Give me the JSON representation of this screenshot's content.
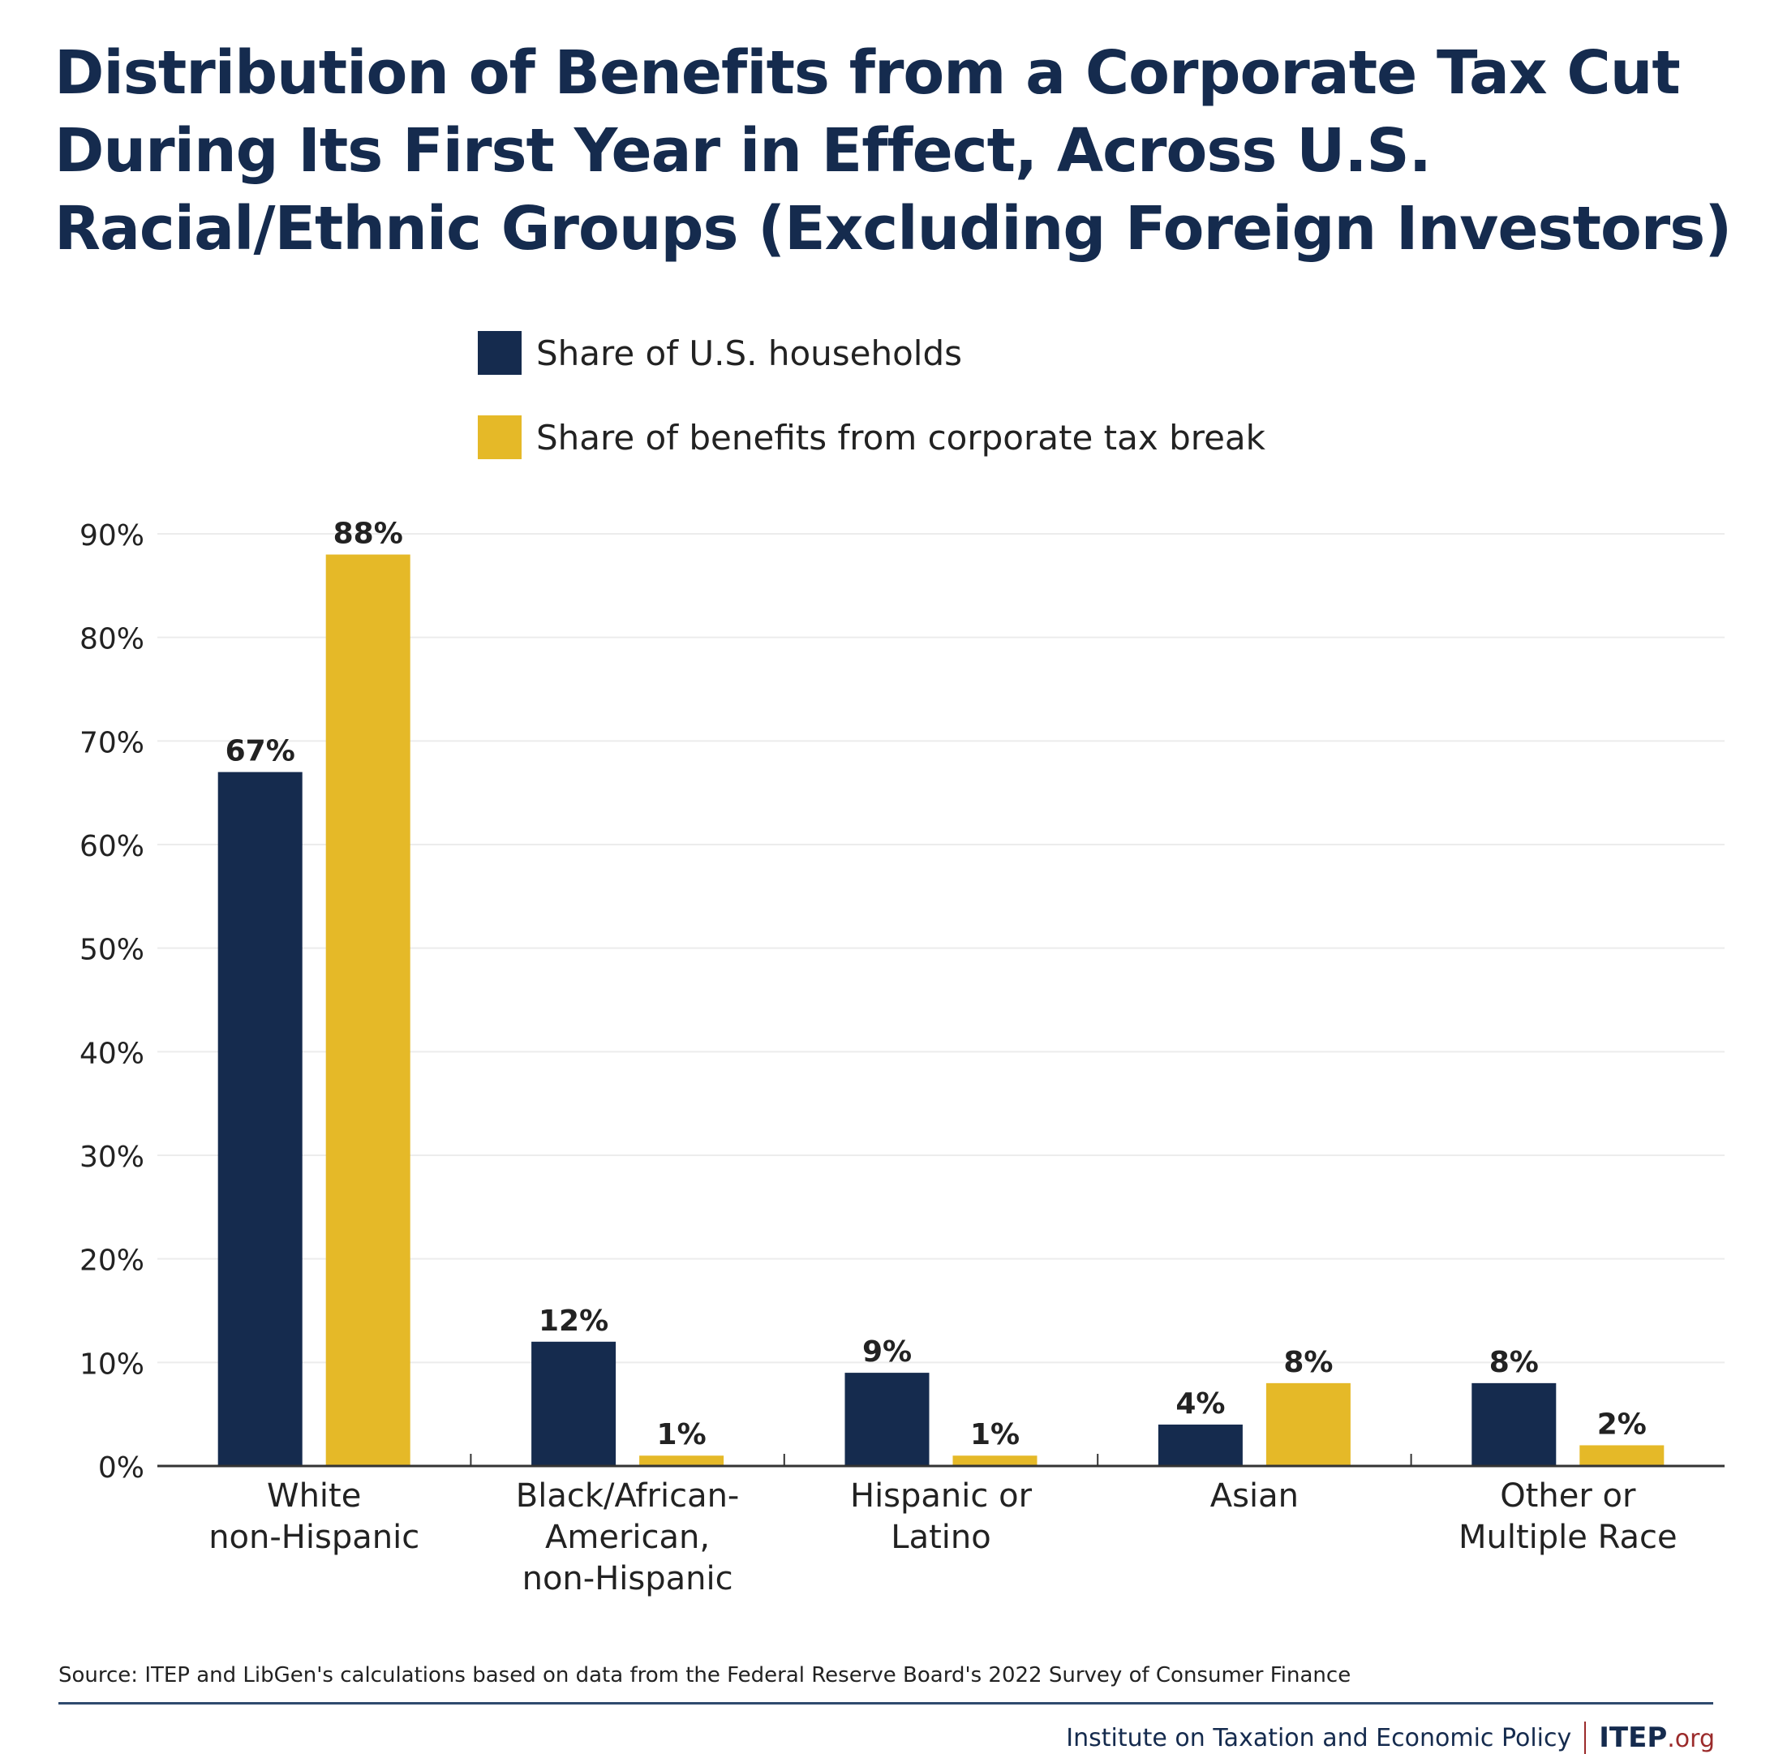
{
  "title_lines": [
    "Distribution of Benefits from a Corporate Tax Cut",
    "During Its First Year in Effect, Across U.S.",
    "Racial/Ethnic Groups (Excluding Foreign Investors)"
  ],
  "legend": [
    {
      "label": "Share of U.S. households",
      "color": "#152b4e"
    },
    {
      "label": "Share of benefits from corporate tax break",
      "color": "#e5b928"
    }
  ],
  "source": "Source: ITEP and LibGen's calculations based on data from the Federal Reserve Board's 2022 Survey of Consumer Finance",
  "footer": {
    "org": "Institute on Taxation and Economic Policy",
    "logo_main": "ITEP",
    "logo_suffix": ".org"
  },
  "colors": {
    "navy": "#152b4e",
    "gold": "#e5b928",
    "grid": "#ececec",
    "axis": "#333333",
    "text": "#222222",
    "accent_red": "#9b2b2b"
  },
  "chart_data": {
    "type": "bar",
    "title": "Distribution of Benefits from a Corporate Tax Cut During Its First Year in Effect, Across U.S. Racial/Ethnic Groups (Excluding Foreign Investors)",
    "xlabel": "",
    "ylabel": "",
    "ylim": [
      0,
      90
    ],
    "yticks": [
      0,
      10,
      20,
      30,
      40,
      50,
      60,
      70,
      80,
      90
    ],
    "ytick_labels": [
      "0%",
      "10%",
      "20%",
      "30%",
      "40%",
      "50%",
      "60%",
      "70%",
      "80%",
      "90%"
    ],
    "grid": true,
    "legend_position": "top-center",
    "categories": [
      [
        "White",
        "non-Hispanic"
      ],
      [
        "Black/African-",
        "American,",
        "non-Hispanic"
      ],
      [
        "Hispanic or",
        "Latino"
      ],
      [
        "Asian"
      ],
      [
        "Other or",
        "Multiple Race"
      ]
    ],
    "series": [
      {
        "name": "Share of U.S. households",
        "color": "#152b4e",
        "values": [
          67,
          12,
          9,
          4,
          8
        ],
        "labels": [
          "67%",
          "12%",
          "9%",
          "4%",
          "8%"
        ]
      },
      {
        "name": "Share of benefits from corporate tax break",
        "color": "#e5b928",
        "values": [
          88,
          1,
          1,
          8,
          2
        ],
        "labels": [
          "88%",
          "1%",
          "1%",
          "8%",
          "2%"
        ]
      }
    ]
  }
}
